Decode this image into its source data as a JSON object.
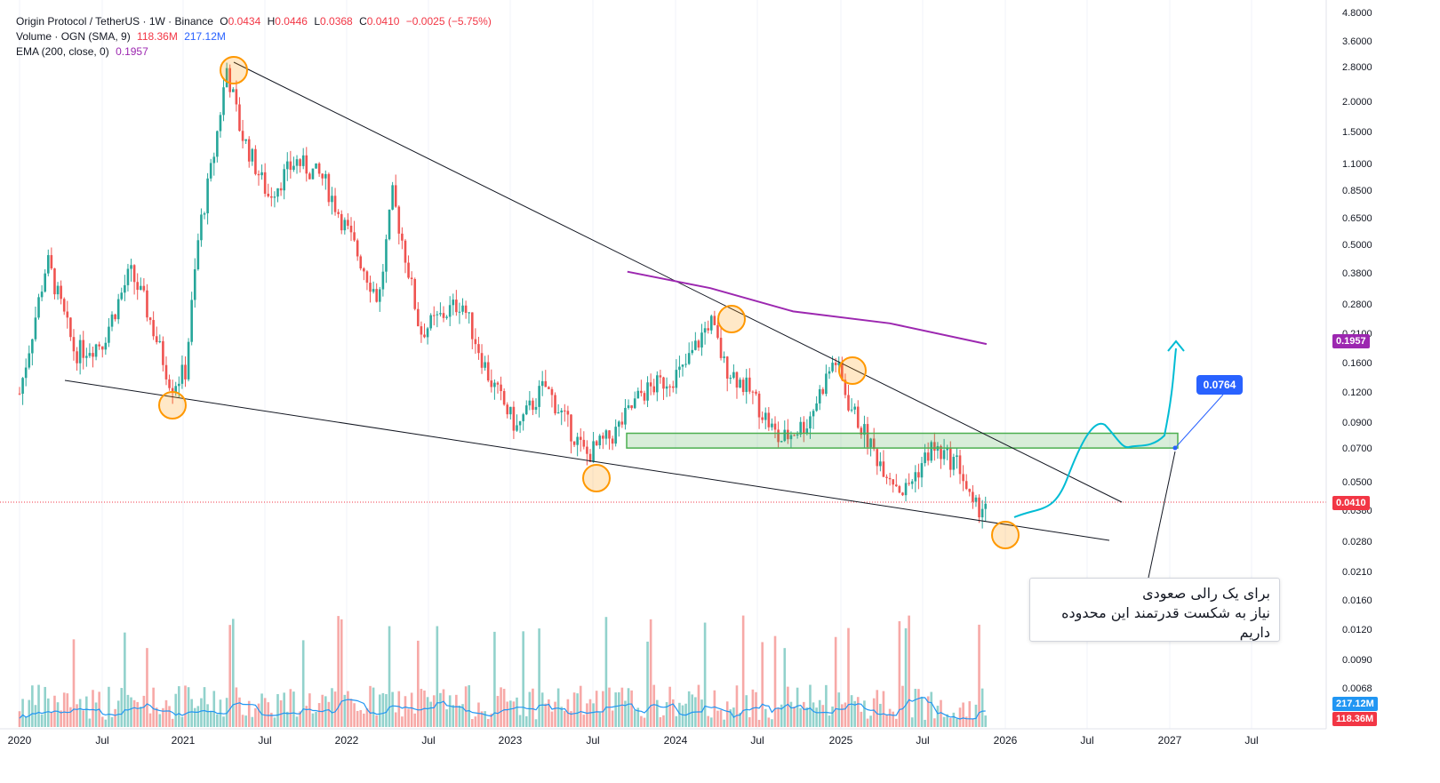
{
  "legend": {
    "symbol": "Origin Protocol / TetherUS · 1W · Binance",
    "o_label": "O",
    "o": "0.0434",
    "h_label": "H",
    "h": "0.0446",
    "l_label": "L",
    "l": "0.0368",
    "c_label": "C",
    "c": "0.0410",
    "chg": "−0.0025 (−5.75%)",
    "volume_label": "Volume · OGN (SMA, 9)",
    "volume_value": "118.36M",
    "volume_sma": "217.12M",
    "ema_label": "EMA (200, close, 0)",
    "ema_value": "0.1957"
  },
  "annotation": {
    "line1": "برای یک رالی صعودی",
    "line2": "نیاز به شکست قدرتمند این محدوده داریم",
    "target": "0.0764"
  },
  "price_tags": {
    "last": "0.0410",
    "ema": "0.1957",
    "vol_sma": "217.12M",
    "vol": "118.36M"
  },
  "colors": {
    "up": "#26a69a",
    "down": "#ef5350",
    "ema": "#9c27b0",
    "vol_sma": "#2196f3",
    "zone": "#4caf50",
    "circle": "#ff9800",
    "path": "#00bcd4"
  },
  "chart_data": {
    "type": "candlestick",
    "scale": "log",
    "y_ticks": [
      "4.8000",
      "3.6000",
      "2.8000",
      "2.0000",
      "1.5000",
      "1.1000",
      "0.8500",
      "0.6500",
      "0.5000",
      "0.3800",
      "0.2800",
      "0.2100",
      "0.1600",
      "0.1200",
      "0.0900",
      "0.0700",
      "0.0500",
      "0.0380",
      "0.0280",
      "0.0210",
      "0.0160",
      "0.0120",
      "0.0090",
      "0.0068"
    ],
    "x_ticks": [
      "2020",
      "Jul",
      "2021",
      "Jul",
      "2022",
      "Jul",
      "2023",
      "Jul",
      "2024",
      "Jul",
      "2025",
      "Jul",
      "2026",
      "Jul",
      "2027",
      "Jul"
    ],
    "ohlc_path": [
      {
        "t": "2020-01",
        "p": 0.12
      },
      {
        "t": "2020-03",
        "p": 0.45
      },
      {
        "t": "2020-05",
        "p": 0.18
      },
      {
        "t": "2020-07",
        "p": 0.2
      },
      {
        "t": "2020-09",
        "p": 0.4
      },
      {
        "t": "2020-10",
        "p": 0.3
      },
      {
        "t": "2020-12",
        "p": 0.13
      },
      {
        "t": "2021-01",
        "p": 0.15
      },
      {
        "t": "2021-02",
        "p": 0.6
      },
      {
        "t": "2021-03",
        "p": 1.2
      },
      {
        "t": "2021-04",
        "p": 3.0
      },
      {
        "t": "2021-05",
        "p": 1.6
      },
      {
        "t": "2021-07",
        "p": 0.85
      },
      {
        "t": "2021-09",
        "p": 1.2
      },
      {
        "t": "2021-11",
        "p": 1.0
      },
      {
        "t": "2022-01",
        "p": 0.55
      },
      {
        "t": "2022-03",
        "p": 0.3
      },
      {
        "t": "2022-04",
        "p": 0.85
      },
      {
        "t": "2022-05",
        "p": 0.45
      },
      {
        "t": "2022-06",
        "p": 0.22
      },
      {
        "t": "2022-09",
        "p": 0.3
      },
      {
        "t": "2022-11",
        "p": 0.14
      },
      {
        "t": "2023-01",
        "p": 0.085
      },
      {
        "t": "2023-03",
        "p": 0.13
      },
      {
        "t": "2023-06",
        "p": 0.065
      },
      {
        "t": "2023-08",
        "p": 0.08
      },
      {
        "t": "2023-10",
        "p": 0.12
      },
      {
        "t": "2024-01",
        "p": 0.15
      },
      {
        "t": "2024-03",
        "p": 0.25
      },
      {
        "t": "2024-04",
        "p": 0.16
      },
      {
        "t": "2024-06",
        "p": 0.12
      },
      {
        "t": "2024-08",
        "p": 0.075
      },
      {
        "t": "2024-10",
        "p": 0.09
      },
      {
        "t": "2024-12",
        "p": 0.17
      },
      {
        "t": "2025-01",
        "p": 0.11
      },
      {
        "t": "2025-03",
        "p": 0.065
      },
      {
        "t": "2025-05",
        "p": 0.045
      },
      {
        "t": "2025-07",
        "p": 0.07
      },
      {
        "t": "2025-09",
        "p": 0.06
      },
      {
        "t": "2025-10",
        "p": 0.038
      },
      {
        "t": "2025-11",
        "p": 0.041
      }
    ],
    "ema200": [
      {
        "t": "2023-09",
        "p": 0.4
      },
      {
        "t": "2024-03",
        "p": 0.34
      },
      {
        "t": "2024-09",
        "p": 0.27
      },
      {
        "t": "2025-04",
        "p": 0.24
      },
      {
        "t": "2025-11",
        "p": 0.1957
      }
    ],
    "zone": {
      "top": 0.081,
      "bottom": 0.07
    },
    "last_price": 0.041,
    "target": 0.0764
  }
}
